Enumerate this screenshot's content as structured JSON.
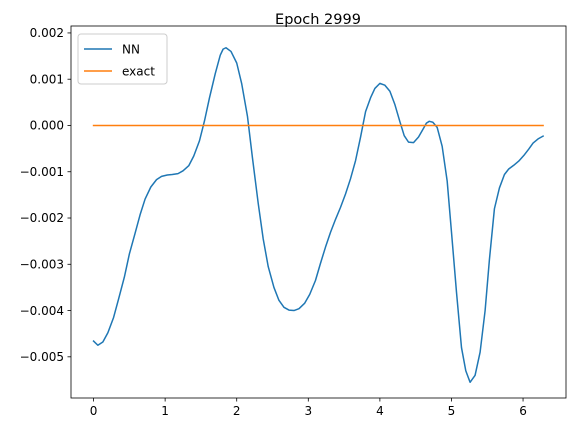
{
  "chart_data": {
    "type": "line",
    "title": "Epoch 2999",
    "xlabel": "",
    "ylabel": "",
    "xlim": [
      -0.315,
      6.6
    ],
    "ylim": [
      -0.00589,
      0.00215
    ],
    "xticks": [
      0,
      1,
      2,
      3,
      4,
      5,
      6
    ],
    "xtick_labels": [
      "0",
      "1",
      "2",
      "3",
      "4",
      "5",
      "6"
    ],
    "yticks": [
      -0.005,
      -0.004,
      -0.003,
      -0.002,
      -0.001,
      0.0,
      0.001,
      0.002
    ],
    "ytick_labels": [
      "−0.005",
      "−0.004",
      "−0.003",
      "−0.002",
      "−0.001",
      "0.000",
      "0.001",
      "0.002"
    ],
    "grid": false,
    "legend_position": "upper-left",
    "series": [
      {
        "name": "NN",
        "color": "#1f77b4",
        "x": [
          0.0,
          0.06,
          0.13,
          0.2,
          0.28,
          0.35,
          0.43,
          0.5,
          0.58,
          0.65,
          0.72,
          0.8,
          0.88,
          0.95,
          1.03,
          1.1,
          1.18,
          1.25,
          1.33,
          1.4,
          1.48,
          1.55,
          1.62,
          1.7,
          1.77,
          1.81,
          1.85,
          1.92,
          2.0,
          2.07,
          2.15,
          2.22,
          2.3,
          2.37,
          2.44,
          2.52,
          2.59,
          2.66,
          2.73,
          2.8,
          2.87,
          2.95,
          3.02,
          3.1,
          3.17,
          3.24,
          3.31,
          3.38,
          3.45,
          3.52,
          3.59,
          3.66,
          3.73,
          3.8,
          3.87,
          3.93,
          4.0,
          4.07,
          4.14,
          4.21,
          4.28,
          4.34,
          4.4,
          4.47,
          4.54,
          4.61,
          4.65,
          4.69,
          4.74,
          4.8,
          4.87,
          4.94,
          5.0,
          5.07,
          5.14,
          5.2,
          5.26,
          5.33,
          5.4,
          5.47,
          5.53,
          5.6,
          5.67,
          5.74,
          5.8,
          5.87,
          5.94,
          6.01,
          6.08,
          6.14,
          6.21,
          6.28
        ],
        "y": [
          -0.00466,
          -0.00475,
          -0.00468,
          -0.00448,
          -0.00415,
          -0.00375,
          -0.00328,
          -0.00278,
          -0.00233,
          -0.00193,
          -0.00159,
          -0.00133,
          -0.00117,
          -0.0011,
          -0.00107,
          -0.00106,
          -0.00104,
          -0.00098,
          -0.00087,
          -0.00066,
          -0.00033,
          0.0001,
          0.0006,
          0.00112,
          0.00152,
          0.00165,
          0.00168,
          0.0016,
          0.00135,
          0.0009,
          0.0002,
          -0.0007,
          -0.00168,
          -0.00245,
          -0.00305,
          -0.0035,
          -0.00378,
          -0.00393,
          -0.00399,
          -0.004,
          -0.00396,
          -0.00384,
          -0.00365,
          -0.00335,
          -0.00298,
          -0.00263,
          -0.00231,
          -0.00203,
          -0.00177,
          -0.00148,
          -0.00115,
          -0.00076,
          -0.00025,
          0.0003,
          0.0006,
          0.0008,
          0.00091,
          0.00087,
          0.00074,
          0.00045,
          8e-05,
          -0.00022,
          -0.00036,
          -0.00037,
          -0.00025,
          -6e-05,
          5e-05,
          9e-05,
          7e-05,
          -4e-05,
          -0.00045,
          -0.0012,
          -0.0023,
          -0.0036,
          -0.0048,
          -0.0053,
          -0.00555,
          -0.0054,
          -0.0049,
          -0.004,
          -0.0029,
          -0.0018,
          -0.00135,
          -0.00106,
          -0.00094,
          -0.00086,
          -0.00077,
          -0.00065,
          -0.00051,
          -0.00038,
          -0.00029,
          -0.00023
        ]
      },
      {
        "name": "exact",
        "color": "#ff7f0e",
        "x": [
          0.0,
          6.28
        ],
        "y": [
          0.0,
          0.0
        ]
      }
    ]
  }
}
